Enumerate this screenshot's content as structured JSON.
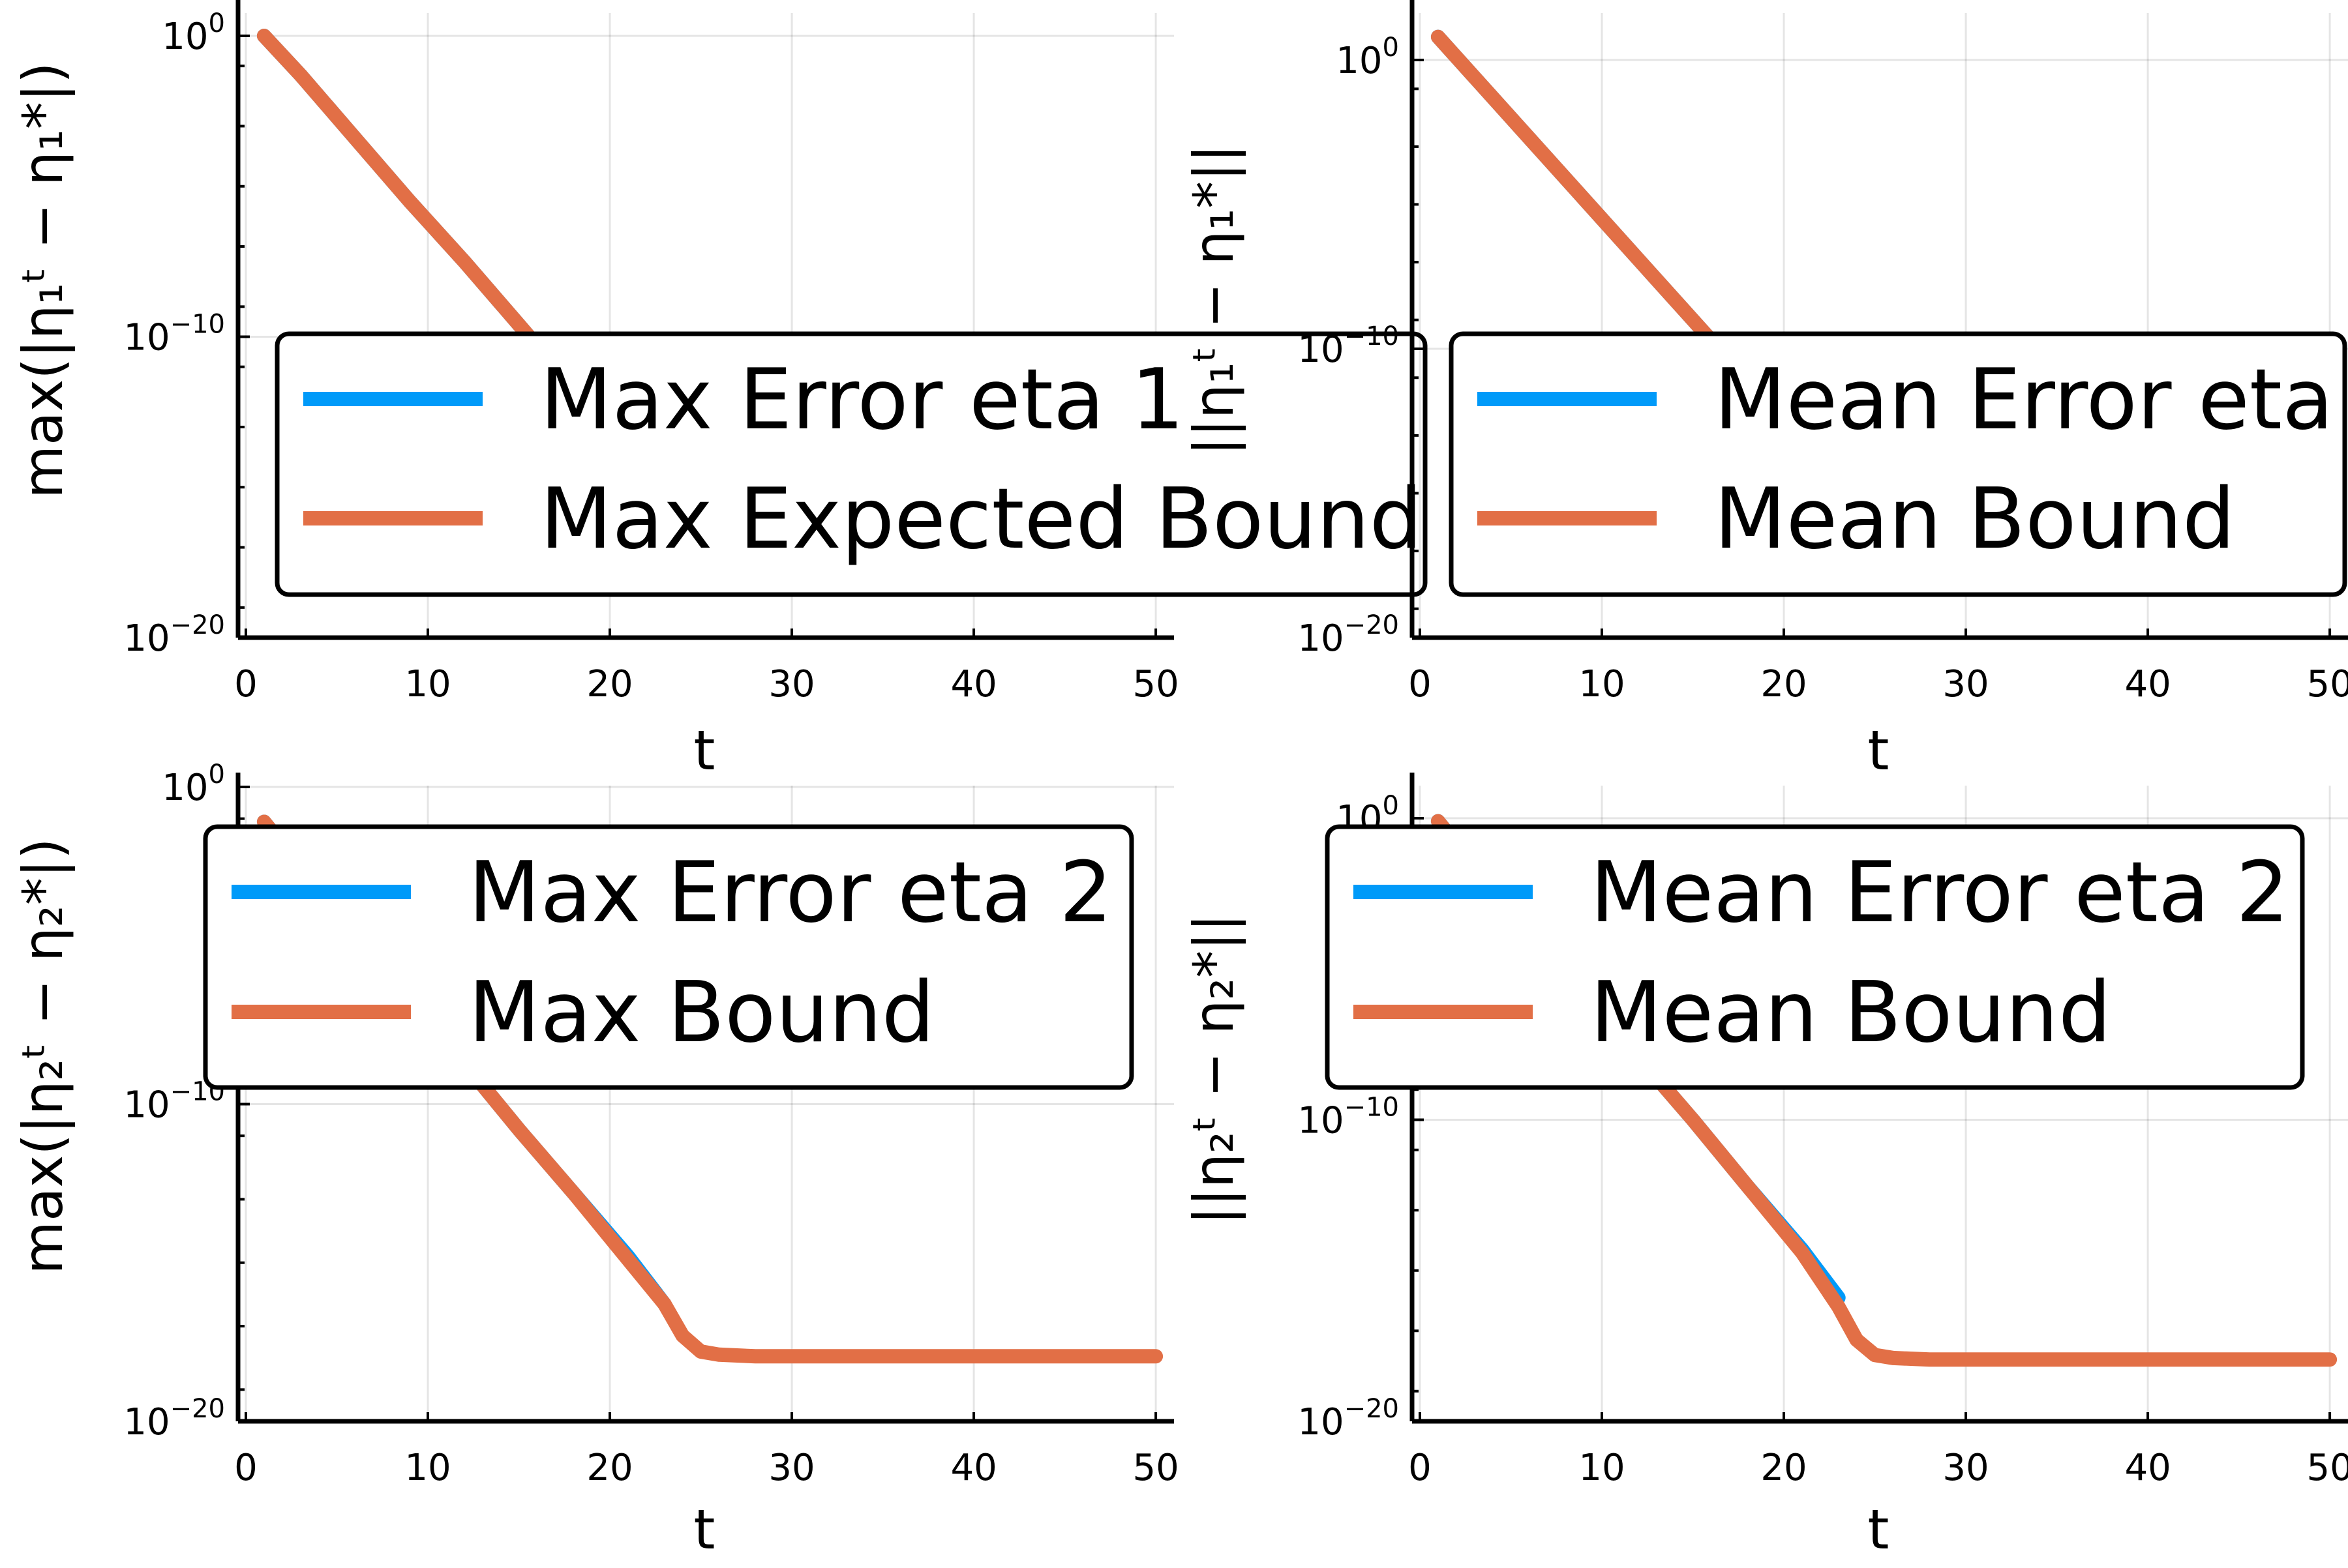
{
  "chart_data": [
    {
      "type": "line",
      "xlabel": "t",
      "ylabel": "max(|η₁ᵗ − η₁*|)",
      "xlim": [
        0,
        51
      ],
      "ylim_exponent": [
        -30,
        0
      ],
      "yscale": "log",
      "x_ticks": [
        "0",
        "10",
        "20",
        "30",
        "40",
        "50"
      ],
      "y_ticks": [
        {
          "value": 0,
          "base": "10",
          "exp": "0"
        },
        {
          "value": -10,
          "base": "10",
          "exp": "−10"
        },
        {
          "value": -20,
          "base": "10",
          "exp": "−20"
        }
      ],
      "grid": true,
      "legend_position": "center-right",
      "series": [
        {
          "name": "Max Error eta 1",
          "color": "#009af9",
          "x": [
            1,
            3,
            6,
            9,
            12,
            15,
            18,
            21,
            23,
            24,
            25,
            27,
            30,
            33,
            36
          ],
          "y_exponent": [
            0.0,
            -1.3,
            -3.4,
            -5.5,
            -7.5,
            -9.6,
            -11.7,
            -13.8,
            -15.8,
            -16.4,
            -16.5,
            -16.5,
            -16.5,
            -16.5,
            -16.5
          ]
        },
        {
          "name": "Max Expected Bound",
          "color": "#e26f46",
          "x": [
            1,
            3,
            6,
            9,
            12,
            15,
            18,
            21,
            23,
            24,
            25,
            26,
            27,
            30,
            35,
            40,
            45,
            50
          ],
          "y_exponent": [
            0.0,
            -1.3,
            -3.4,
            -5.5,
            -7.5,
            -9.6,
            -11.7,
            -13.8,
            -15.2,
            -15.9,
            -17.2,
            -17.8,
            -17.9,
            -17.95,
            -17.95,
            -17.95,
            -17.95,
            -17.95
          ]
        }
      ]
    },
    {
      "type": "line",
      "xlabel": "t",
      "ylabel": "||η₁ᵗ − η₁*||",
      "xlim": [
        0,
        51
      ],
      "ylim_exponent": [
        -30,
        0
      ],
      "yscale": "log",
      "x_ticks": [
        "0",
        "10",
        "20",
        "30",
        "40",
        "50"
      ],
      "y_ticks": [
        {
          "value": 0,
          "base": "10",
          "exp": "0"
        },
        {
          "value": -10,
          "base": "10",
          "exp": "−10"
        },
        {
          "value": -20,
          "base": "10",
          "exp": "−20"
        }
      ],
      "grid": true,
      "legend_position": "center-right",
      "series": [
        {
          "name": "Mean Error eta",
          "color": "#009af9",
          "x": [
            1,
            3,
            6,
            9,
            12,
            15,
            18,
            21,
            23,
            24,
            25,
            27,
            30,
            33,
            36
          ],
          "y_exponent": [
            0.8,
            -0.6,
            -2.7,
            -4.8,
            -6.9,
            -9.0,
            -11.1,
            -13.2,
            -15.5,
            -16.4,
            -16.5,
            -16.5,
            -16.5,
            -16.5,
            -16.5
          ]
        },
        {
          "name": "Mean Bound",
          "color": "#e26f46",
          "x": [
            1,
            3,
            6,
            9,
            12,
            15,
            18,
            21,
            23,
            24,
            25,
            26,
            27,
            30,
            35,
            40,
            45,
            50
          ],
          "y_exponent": [
            0.8,
            -0.6,
            -2.7,
            -4.8,
            -6.9,
            -9.0,
            -11.1,
            -13.2,
            -15.0,
            -15.9,
            -17.2,
            -17.8,
            -17.9,
            -17.95,
            -17.95,
            -17.95,
            -17.95,
            -17.95
          ]
        }
      ]
    },
    {
      "type": "line",
      "xlabel": "t",
      "ylabel": "max(|η₂ᵗ − η₂*|)",
      "xlim": [
        0,
        51
      ],
      "ylim_exponent": [
        -30,
        0
      ],
      "yscale": "log",
      "x_ticks": [
        "0",
        "10",
        "20",
        "30",
        "40",
        "50"
      ],
      "y_ticks": [
        {
          "value": 0,
          "base": "10",
          "exp": "0"
        },
        {
          "value": -10,
          "base": "10",
          "exp": "−10"
        },
        {
          "value": -20,
          "base": "10",
          "exp": "−20"
        }
      ],
      "grid": true,
      "legend_position": "top-right",
      "series": [
        {
          "name": "Max Error eta 2",
          "color": "#009af9",
          "x": [
            1,
            3,
            6,
            9,
            12,
            15,
            18,
            21,
            23
          ],
          "y_exponent": [
            -1.1,
            -2.5,
            -4.5,
            -6.6,
            -8.7,
            -10.8,
            -12.8,
            -14.8,
            -16.3
          ]
        },
        {
          "name": "Max Bound",
          "color": "#e26f46",
          "x": [
            1,
            3,
            6,
            9,
            12,
            15,
            18,
            21,
            23,
            24,
            25,
            26,
            28,
            30,
            35,
            40,
            45,
            50
          ],
          "y_exponent": [
            -1.1,
            -2.5,
            -4.5,
            -6.6,
            -8.7,
            -10.8,
            -12.8,
            -14.9,
            -16.3,
            -17.3,
            -17.8,
            -17.9,
            -17.95,
            -17.95,
            -17.95,
            -17.95,
            -17.95,
            -17.95
          ]
        }
      ]
    },
    {
      "type": "line",
      "xlabel": "t",
      "ylabel": "||η₂ᵗ − η₂*||",
      "xlim": [
        0,
        51
      ],
      "ylim_exponent": [
        -30,
        0
      ],
      "yscale": "log",
      "x_ticks": [
        "0",
        "10",
        "20",
        "30",
        "40",
        "50"
      ],
      "y_ticks": [
        {
          "value": 0,
          "base": "10",
          "exp": "0"
        },
        {
          "value": -10,
          "base": "10",
          "exp": "−10"
        },
        {
          "value": -20,
          "base": "10",
          "exp": "−20"
        }
      ],
      "grid": true,
      "legend_position": "top-right",
      "series": [
        {
          "name": "Mean Error eta 2",
          "color": "#009af9",
          "x": [
            1,
            3,
            6,
            9,
            12,
            15,
            18,
            21,
            23
          ],
          "y_exponent": [
            -0.1,
            -1.6,
            -3.7,
            -5.8,
            -7.9,
            -10.0,
            -12.2,
            -14.3,
            -15.9
          ]
        },
        {
          "name": "Mean Bound",
          "color": "#e26f46",
          "x": [
            1,
            3,
            6,
            9,
            12,
            15,
            18,
            21,
            23,
            24,
            25,
            26,
            28,
            30,
            35,
            40,
            45,
            50
          ],
          "y_exponent": [
            -0.1,
            -1.6,
            -3.7,
            -5.8,
            -7.9,
            -10.0,
            -12.2,
            -14.4,
            -16.2,
            -17.3,
            -17.8,
            -17.9,
            -17.95,
            -17.95,
            -17.95,
            -17.95,
            -17.95,
            -17.95
          ]
        }
      ]
    }
  ]
}
